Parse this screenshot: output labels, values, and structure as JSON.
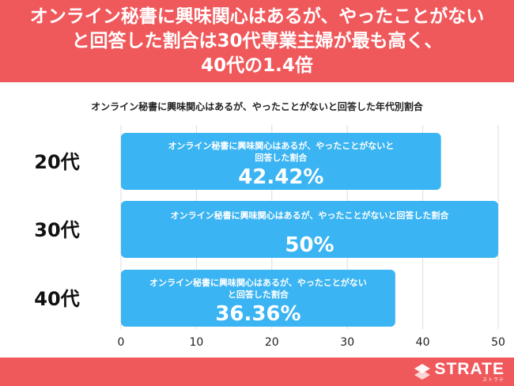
{
  "header": {
    "title_lines": [
      "オンライン秘書に興味関心はあるが、やったことがない",
      "と回答した割合は30代専業主婦が最も高く、",
      "40代の1.4倍"
    ]
  },
  "brand": {
    "logo_text": "STRATE",
    "logo_kana": "ストラテ"
  },
  "colors": {
    "header_bg": "#f0595c",
    "bar": "#3ab4f2",
    "bar_text": "#ffffff"
  },
  "chart_data": {
    "type": "bar",
    "orientation": "horizontal",
    "title": "オンライン秘書に興味関心はあるが、やったことがないと回答した年代別割合",
    "categories": [
      "20代",
      "30代",
      "40代"
    ],
    "values": [
      42.42,
      50,
      36.36
    ],
    "value_labels": [
      "42.42%",
      "50%",
      "36.36%"
    ],
    "bar_label_lines": [
      [
        "オンライン秘書に興味関心はあるが、やったことがないと",
        "回答した割合"
      ],
      [
        "オンライン秘書に興味関心はあるが、やったことがないと回答した割合"
      ],
      [
        "オンライン秘書に興味関心はあるが、やったことがない",
        "と回答した割合"
      ]
    ],
    "xlim": [
      0,
      50
    ],
    "xticks": [
      0,
      10,
      20,
      30,
      40,
      50
    ],
    "grid": true
  }
}
